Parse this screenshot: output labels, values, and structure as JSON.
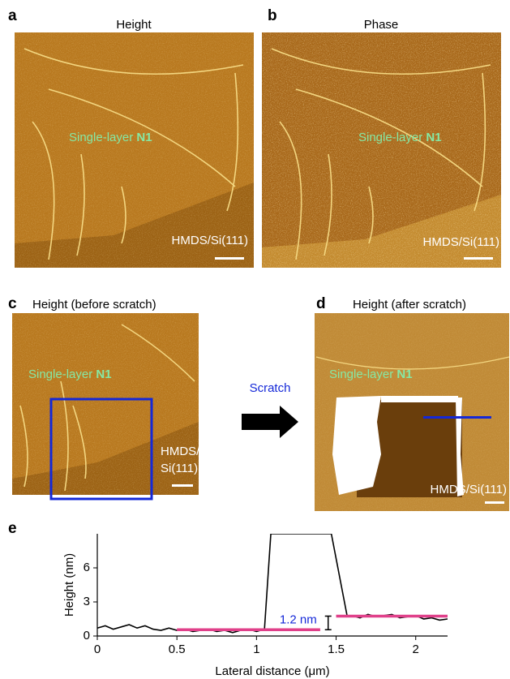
{
  "panels": [
    {
      "label": "a",
      "title": "Height",
      "annotation": "Single-layer",
      "annotation_bold": "N1",
      "substrate": [
        "HMDS/Si(111)"
      ]
    },
    {
      "label": "b",
      "title": "Phase",
      "annotation": "Single-layer",
      "annotation_bold": "N1",
      "substrate": [
        "HMDS/Si(111)"
      ]
    },
    {
      "label": "c",
      "title": "Height (before scratch)",
      "annotation": "Single-layer",
      "annotation_bold": "N1",
      "substrate": [
        "HMDS/",
        "Si(111)"
      ]
    },
    {
      "label": "d",
      "title": "Height (after scratch)",
      "annotation": "Single-layer",
      "annotation_bold": "N1",
      "substrate": [
        "HMDS/Si(111)"
      ]
    }
  ],
  "arrow_label": "Scratch",
  "chart_data": {
    "type": "line",
    "label": "e",
    "xlabel": "Lateral distance (μm)",
    "ylabel": "Height (nm)",
    "xlim": [
      0,
      2.2
    ],
    "ylim": [
      0,
      9
    ],
    "xticks": [
      0,
      0.5,
      1,
      1.5,
      2
    ],
    "yticks": [
      0,
      3,
      6
    ],
    "x": [
      0,
      0.05,
      0.1,
      0.15,
      0.2,
      0.25,
      0.3,
      0.35,
      0.4,
      0.45,
      0.5,
      0.55,
      0.6,
      0.65,
      0.7,
      0.75,
      0.8,
      0.85,
      0.9,
      0.95,
      1.0,
      1.05,
      1.09,
      1.47,
      1.57,
      1.6,
      1.65,
      1.7,
      1.75,
      1.8,
      1.85,
      1.9,
      1.95,
      2.0,
      2.05,
      2.1,
      2.15,
      2.2
    ],
    "series": [
      {
        "color": "#000000",
        "values": [
          0.7,
          0.9,
          0.6,
          0.8,
          1.0,
          0.7,
          0.9,
          0.6,
          0.5,
          0.7,
          0.5,
          0.6,
          0.4,
          0.5,
          0.6,
          0.4,
          0.5,
          0.3,
          0.5,
          0.6,
          0.4,
          0.6,
          9,
          9,
          1.7,
          1.8,
          1.6,
          1.9,
          1.7,
          1.8,
          1.9,
          1.6,
          1.7,
          1.8,
          1.5,
          1.6,
          1.4,
          1.5
        ]
      }
    ],
    "levels": [
      {
        "x": [
          0.5,
          1.4
        ],
        "y": 0.55,
        "color": "#e0408a"
      },
      {
        "x": [
          1.5,
          2.2
        ],
        "y": 1.75,
        "color": "#e0408a"
      }
    ],
    "annotation": "1.2 nm"
  }
}
